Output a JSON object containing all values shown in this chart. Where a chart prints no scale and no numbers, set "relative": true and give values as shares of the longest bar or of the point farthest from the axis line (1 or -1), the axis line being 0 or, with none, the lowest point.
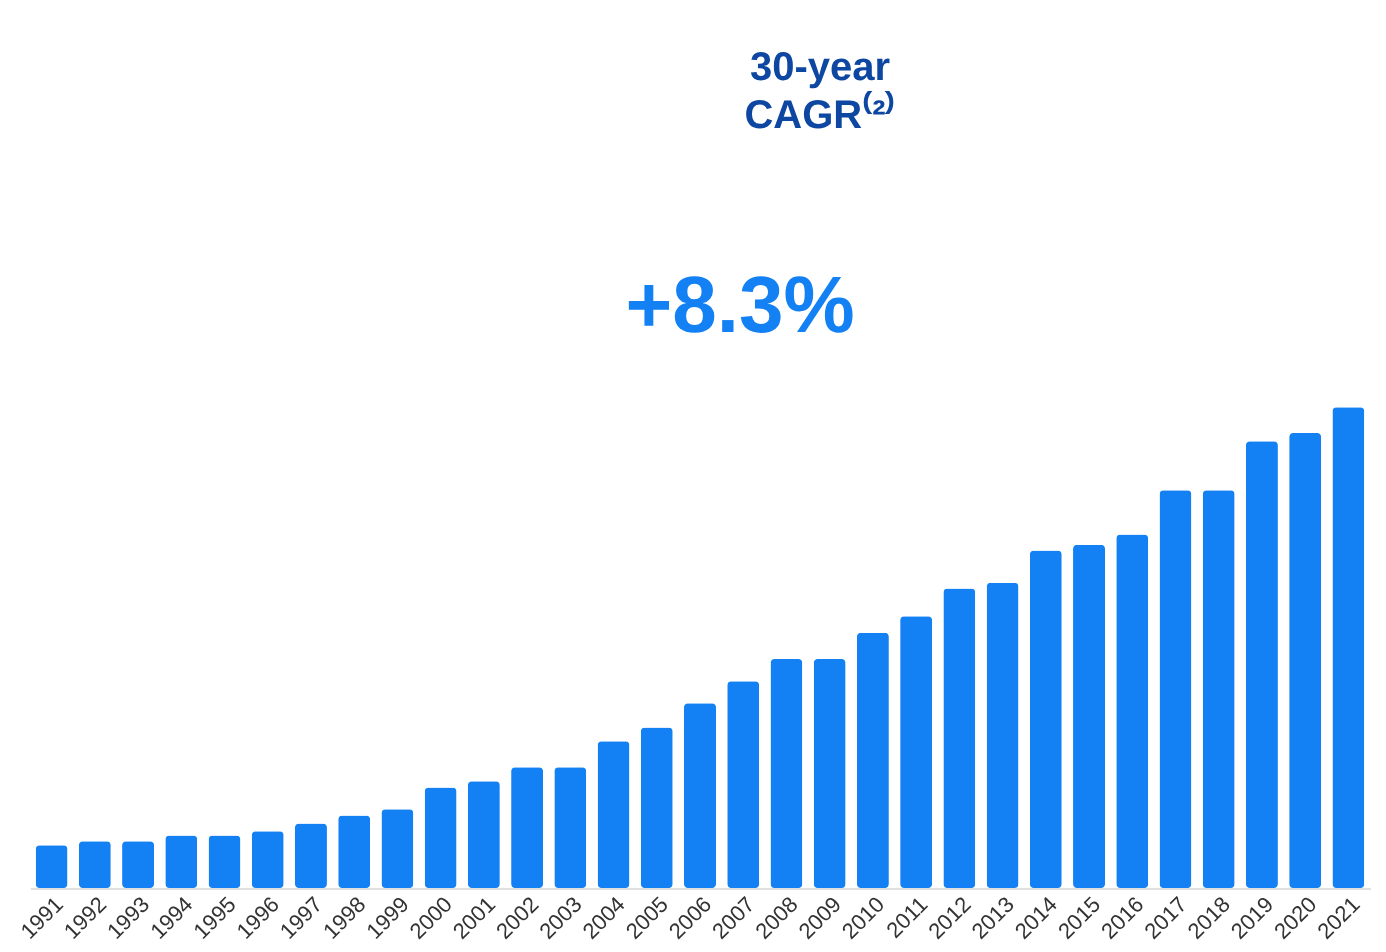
{
  "chart_data": {
    "type": "bar",
    "relative": true,
    "color": "#1380f4",
    "categories": [
      "1991",
      "1992",
      "1993",
      "1994",
      "1995",
      "1996",
      "1997",
      "1998",
      "1999",
      "2000",
      "2001",
      "2002",
      "2003",
      "2004",
      "2005",
      "2006",
      "2007",
      "2008",
      "2009",
      "2010",
      "2011",
      "2012",
      "2013",
      "2014",
      "2015",
      "2016",
      "2017",
      "2018",
      "2019",
      "2020",
      "2021"
    ],
    "values": [
      0.089,
      0.097,
      0.097,
      0.109,
      0.109,
      0.118,
      0.134,
      0.151,
      0.164,
      0.209,
      0.222,
      0.251,
      0.251,
      0.305,
      0.334,
      0.384,
      0.43,
      0.476,
      0.476,
      0.531,
      0.565,
      0.623,
      0.635,
      0.702,
      0.714,
      0.735,
      0.827,
      0.827,
      0.929,
      0.946,
      1
    ],
    "annotations": [
      "30-year CAGR⁽²⁾",
      "+8.3%"
    ],
    "grid": false
  }
}
